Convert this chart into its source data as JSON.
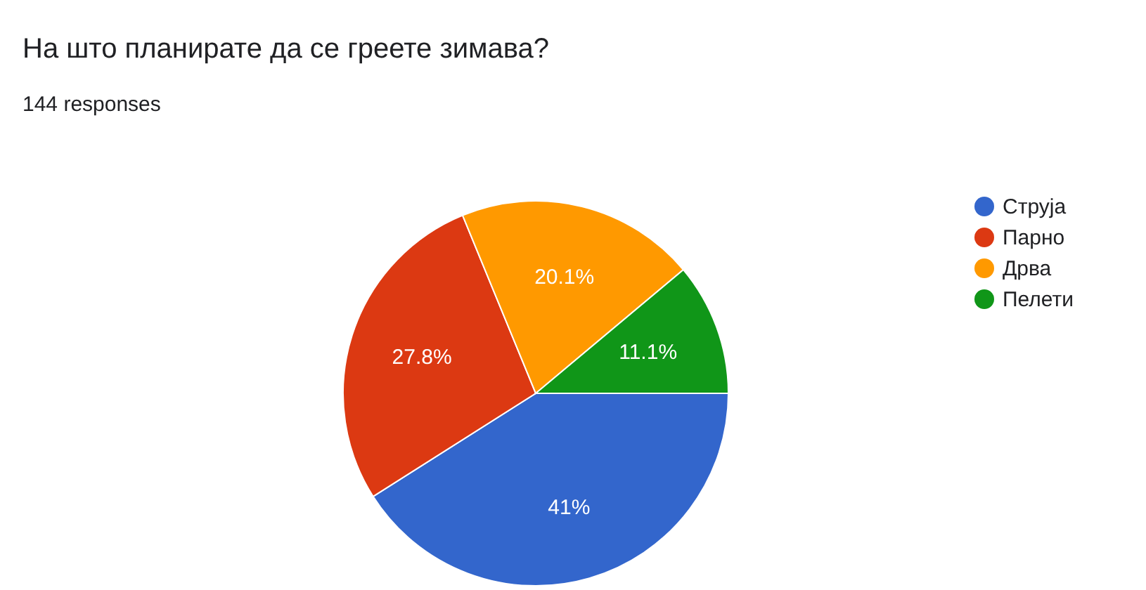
{
  "chart_data": {
    "type": "pie",
    "title": "На што планирате да се греете зимава?",
    "subtitle": "144 responses",
    "categories": [
      "Струја",
      "Парно",
      "Дрва",
      "Пелети"
    ],
    "values": [
      41,
      27.8,
      20.1,
      11.1
    ],
    "colors": [
      "#3366cc",
      "#dc3912",
      "#ff9900",
      "#109618"
    ],
    "value_labels": [
      "41%",
      "27.8%",
      "20.1%",
      "11.1%"
    ],
    "legend": "right"
  }
}
